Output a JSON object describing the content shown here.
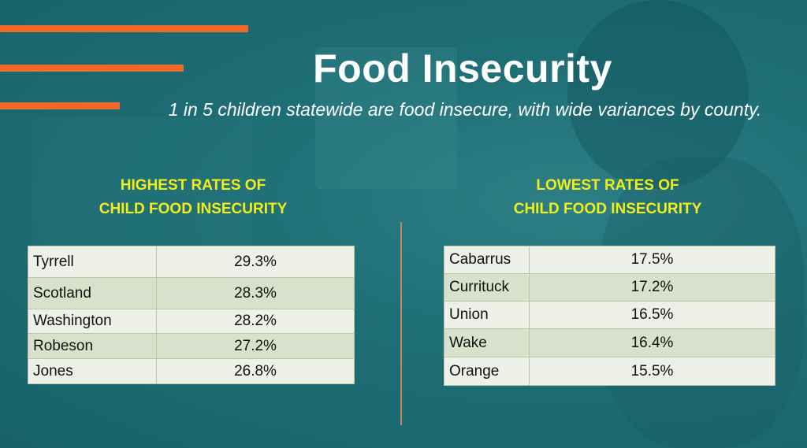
{
  "title": "Food Insecurity",
  "subtitle": "1 in 5 children statewide are food insecure, with wide variances by county.",
  "highest": {
    "heading_line1": "HIGHEST RATES OF",
    "heading_line2": "CHILD FOOD INSECURITY",
    "rows": [
      {
        "county": "Tyrrell",
        "rate": "29.3%"
      },
      {
        "county": "Scotland",
        "rate": "28.3%"
      },
      {
        "county": "Washington",
        "rate": "28.2%"
      },
      {
        "county": "Robeson",
        "rate": "27.2%"
      },
      {
        "county": "Jones",
        "rate": "26.8%"
      }
    ]
  },
  "lowest": {
    "heading_line1": "LOWEST RATES OF",
    "heading_line2": "CHILD FOOD INSECURITY",
    "rows": [
      {
        "county": "Cabarrus",
        "rate": "17.5%"
      },
      {
        "county": "Currituck",
        "rate": "17.2%"
      },
      {
        "county": "Union",
        "rate": "16.5%"
      },
      {
        "county": "Wake",
        "rate": "16.4%"
      },
      {
        "county": "Orange",
        "rate": "15.5%"
      }
    ]
  },
  "colors": {
    "accent_stripe": "#ef6a2a",
    "heading_yellow": "#f2ee1c",
    "background_teal": "#1f6f77"
  }
}
